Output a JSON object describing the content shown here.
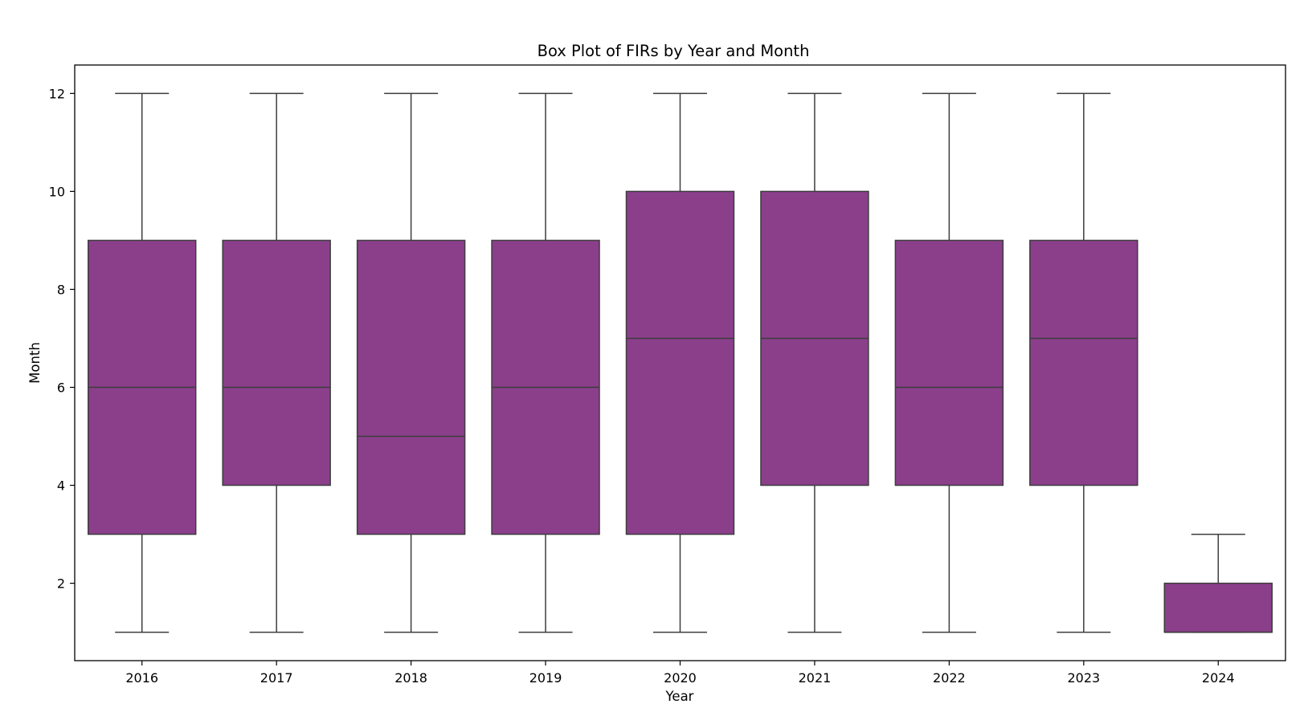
{
  "chart_data": {
    "type": "box",
    "title": "Box Plot of FIRs by Year and Month",
    "xlabel": "Year",
    "ylabel": "Month",
    "ylim": [
      0.42,
      12.58
    ],
    "yticks": [
      2,
      4,
      6,
      8,
      10,
      12
    ],
    "box_color": "#8b3f8b",
    "line_color": "#3d3d3d",
    "grid": false,
    "boxes": [
      {
        "category": "2016",
        "min": 1,
        "q1": 3,
        "median": 6,
        "q3": 9,
        "max": 12
      },
      {
        "category": "2017",
        "min": 1,
        "q1": 4,
        "median": 6,
        "q3": 9,
        "max": 12
      },
      {
        "category": "2018",
        "min": 1,
        "q1": 3,
        "median": 5,
        "q3": 9,
        "max": 12
      },
      {
        "category": "2019",
        "min": 1,
        "q1": 3,
        "median": 6,
        "q3": 9,
        "max": 12
      },
      {
        "category": "2020",
        "min": 1,
        "q1": 3,
        "median": 7,
        "q3": 10,
        "max": 12
      },
      {
        "category": "2021",
        "min": 1,
        "q1": 4,
        "median": 7,
        "q3": 10,
        "max": 12
      },
      {
        "category": "2022",
        "min": 1,
        "q1": 4,
        "median": 6,
        "q3": 9,
        "max": 12
      },
      {
        "category": "2023",
        "min": 1,
        "q1": 4,
        "median": 7,
        "q3": 9,
        "max": 12
      },
      {
        "category": "2024",
        "min": 1,
        "q1": 1,
        "median": 1,
        "q3": 2,
        "max": 3
      }
    ]
  }
}
